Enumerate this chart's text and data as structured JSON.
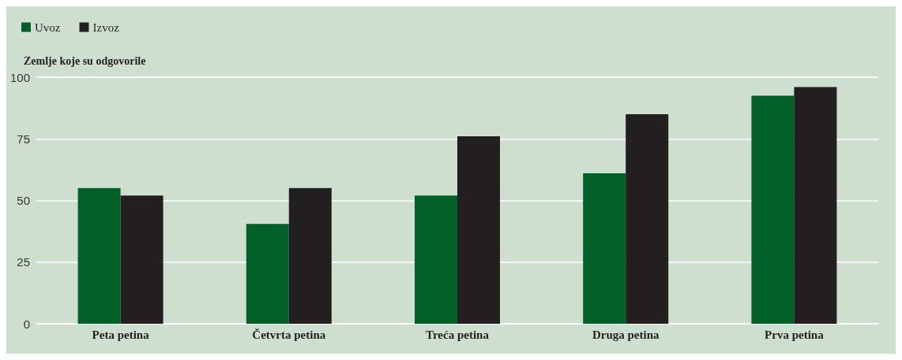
{
  "chart_data": {
    "type": "bar",
    "ylabel": "Zemlje koje su odgovorile",
    "categories": [
      "Peta petina",
      "Četvrta petina",
      "Treća petina",
      "Druga petina",
      "Prva petina"
    ],
    "series": [
      {
        "name": "Uvoz",
        "color": "#006027",
        "values": [
          55,
          40.5,
          52,
          61,
          92.5
        ]
      },
      {
        "name": "Izvoz",
        "color": "#231f20",
        "values": [
          52,
          55,
          76,
          85,
          96
        ]
      }
    ],
    "ylim": [
      0,
      100
    ],
    "yticks": [
      0,
      25,
      50,
      75,
      100
    ],
    "grid": "y",
    "legend": "top left"
  }
}
